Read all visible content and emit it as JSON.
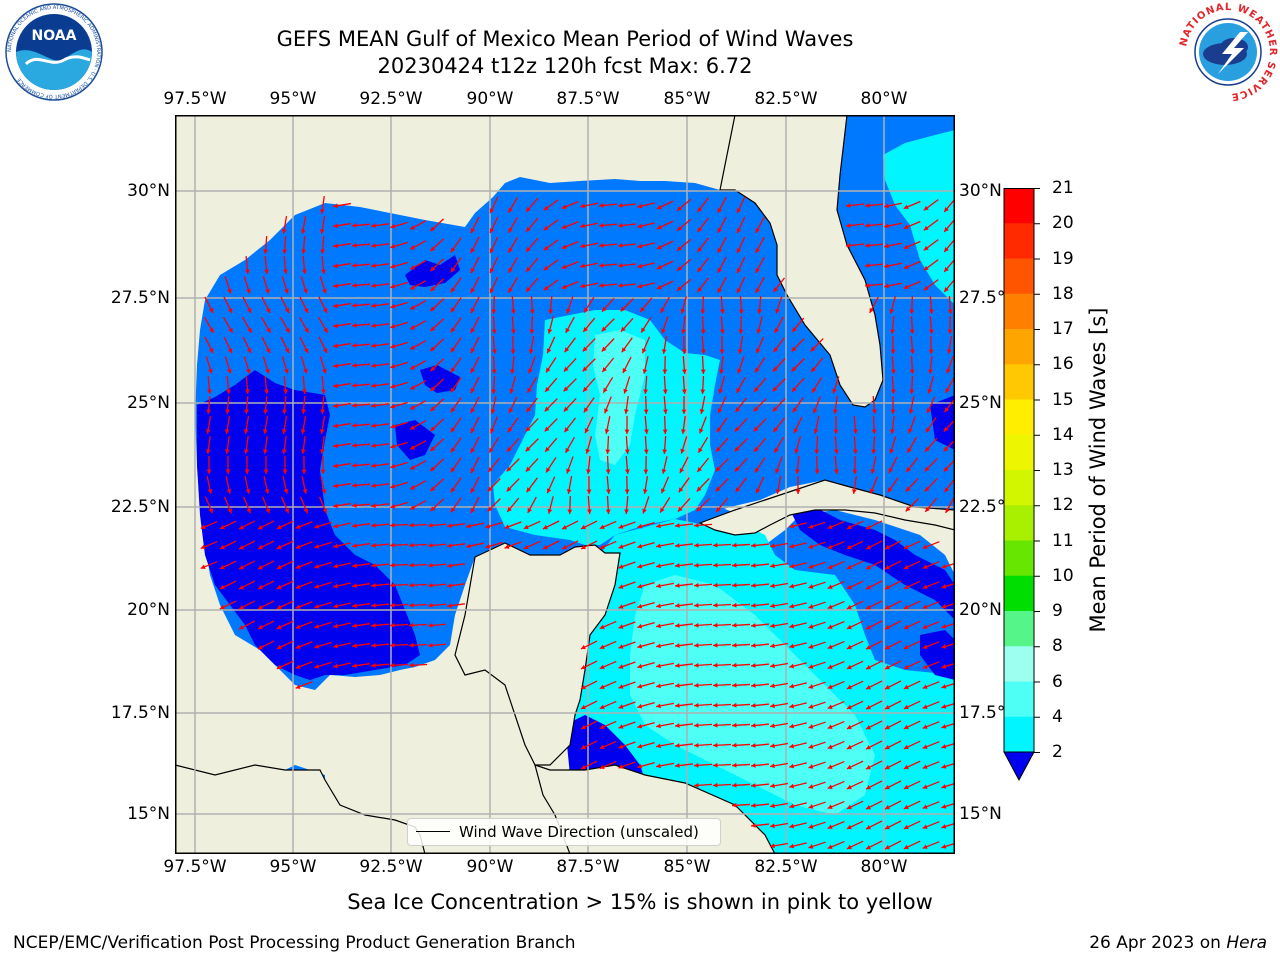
{
  "title": {
    "line1": "GEFS MEAN Gulf of Mexico Mean Period of Wind Waves",
    "line2": "20230424 t12z 120h fcst   Max: 6.72"
  },
  "map": {
    "x_ticks": [
      "97.5°W",
      "95°W",
      "92.5°W",
      "90°W",
      "87.5°W",
      "85°W",
      "82.5°W",
      "80°W"
    ],
    "y_ticks": [
      "30°N",
      "27.5°N",
      "25°N",
      "22.5°N",
      "20°N",
      "17.5°N",
      "15°N"
    ],
    "land_color": "#efefde",
    "grid_color": "#b0b0b0",
    "arrow_color": "#ff0000",
    "legend_label": "Wind Wave Direction (unscaled)"
  },
  "colorbar": {
    "title": "Mean Period of Wind Waves [s]",
    "labels": [
      "21",
      "20",
      "19",
      "18",
      "17",
      "16",
      "15",
      "14",
      "13",
      "12",
      "11",
      "10",
      "9",
      "8",
      "6",
      "4",
      "2"
    ],
    "colors": [
      "#ff0000",
      "#ff2a00",
      "#ff5500",
      "#ff7f00",
      "#ffa500",
      "#ffc800",
      "#ffee00",
      "#eef500",
      "#d2f500",
      "#a8ef00",
      "#66e600",
      "#00dd00",
      "#55f58a",
      "#9cfff0",
      "#4dfff5",
      "#00f5ff",
      "#0079ff"
    ],
    "underflow_color": "#0000ee"
  },
  "logos": {
    "noaa": {
      "text": "NOAA",
      "ring": "NATIONAL OCEANIC AND ATMOSPHERIC ADMINISTRATION · U.S. DEPARTMENT OF COMMERCE"
    },
    "nws": {
      "ring": "NATIONAL WEATHER SERVICE"
    }
  },
  "note": "Sea Ice Concentration > 15% is shown in pink to yellow",
  "footer": {
    "left": "NCEP/EMC/Verification Post Processing Product Generation Branch",
    "right_prefix": "26 Apr 2023 on ",
    "right_host": "Hera"
  }
}
